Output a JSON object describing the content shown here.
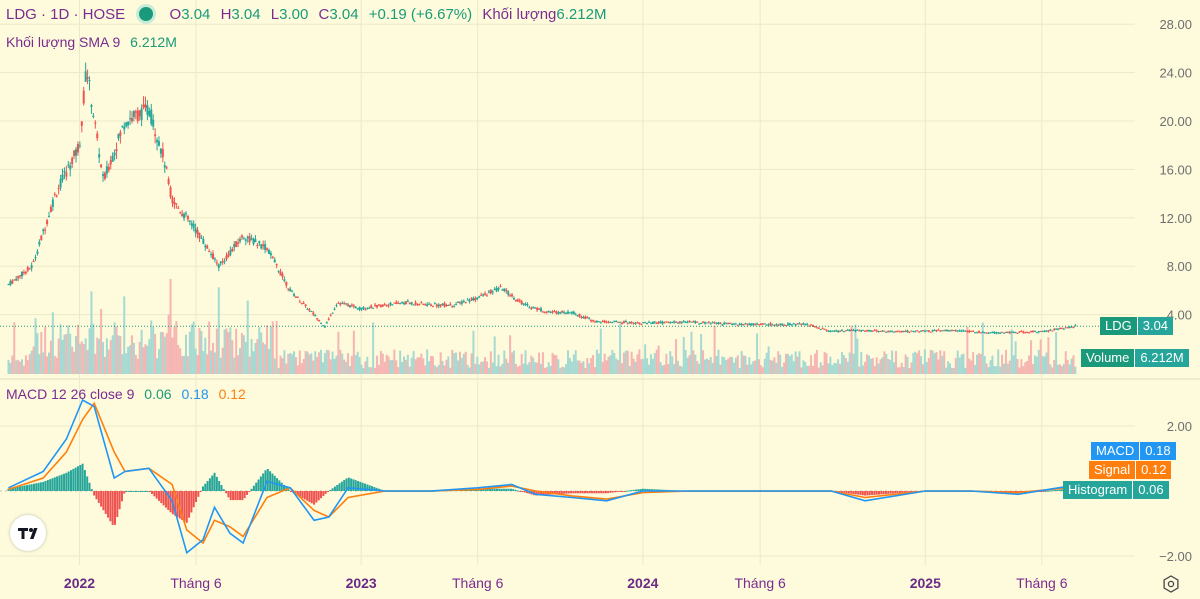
{
  "header": {
    "symbol": "LDG · 1D · HOSE",
    "o_label": "O",
    "o_value": "3.04",
    "h_label": "H",
    "h_value": "3.04",
    "l_label": "L",
    "l_value": "3.00",
    "c_label": "C",
    "c_value": "3.04",
    "change": "+0.19 (+6.67%)",
    "vol_label": "Khối lượng",
    "vol_value": "6.212M"
  },
  "volume_legend": {
    "label": "Khối lượng SMA 9",
    "value": "6.212M"
  },
  "macd_legend": {
    "label": "MACD 12 26 close 9",
    "hist": "0.06",
    "macd": "0.18",
    "signal": "0.12"
  },
  "badges": {
    "price": {
      "label": "LDG",
      "value": "3.04"
    },
    "volume": {
      "label": "Volume",
      "value": "6.212M"
    },
    "macd": {
      "label": "MACD",
      "value": "0.18"
    },
    "signal": {
      "label": "Signal",
      "value": "0.12"
    },
    "histogram": {
      "label": "Histogram",
      "value": "0.06"
    }
  },
  "colors": {
    "up": "#26a69a",
    "down": "#ef5350",
    "macd": "#2196f3",
    "signal": "#ff7f0e",
    "hist_up": "#26a69a",
    "hist_down": "#ef5350",
    "accent": "#7b2b8f"
  },
  "chart_data": [
    {
      "type": "candlestick",
      "symbol": "LDG",
      "interval": "1D",
      "exchange": "HOSE",
      "x_ticks": [
        "2022",
        "Tháng 6",
        "2023",
        "Tháng 6",
        "2024",
        "Tháng 6",
        "2025",
        "Tháng 6"
      ],
      "y_ticks": [
        "28.00",
        "24.00",
        "20.00",
        "16.00",
        "12.00",
        "8.00",
        "4.00"
      ],
      "ylim": [
        0,
        28
      ],
      "grid": true,
      "series": [
        {
          "name": "LDG",
          "x": [
            "2021-10-01",
            "2021-11-01",
            "2021-12-01",
            "2022-01-01",
            "2022-01-10",
            "2022-02-01",
            "2022-03-01",
            "2022-04-01",
            "2022-04-20",
            "2022-05-01",
            "2022-06-01",
            "2022-07-01",
            "2022-08-01",
            "2022-09-01",
            "2022-10-01",
            "2022-11-01",
            "2022-11-15",
            "2022-12-01",
            "2023-01-01",
            "2023-02-01",
            "2023-03-01",
            "2023-04-01",
            "2023-05-01",
            "2023-06-01",
            "2023-07-01",
            "2023-08-01",
            "2023-09-01",
            "2023-10-01",
            "2023-11-01",
            "2023-12-01",
            "2024-01-01",
            "2024-03-01",
            "2024-05-01",
            "2024-06-01",
            "2024-08-01",
            "2024-09-01",
            "2024-10-01",
            "2024-12-01",
            "2025-02-01",
            "2025-04-01",
            "2025-06-01",
            "2025-07-15"
          ],
          "close": [
            6.5,
            8.0,
            14.0,
            18.0,
            24.5,
            15.0,
            20.0,
            21.0,
            17.0,
            13.5,
            11.0,
            8.0,
            10.5,
            9.5,
            6.0,
            4.0,
            3.0,
            5.0,
            4.5,
            4.8,
            5.0,
            4.8,
            4.8,
            5.4,
            6.2,
            4.8,
            4.2,
            4.2,
            3.4,
            3.4,
            3.3,
            3.4,
            3.2,
            3.2,
            3.2,
            2.6,
            2.7,
            2.6,
            2.7,
            2.5,
            2.6,
            3.04
          ]
        },
        {
          "name": "Volume",
          "unit": "M",
          "last": 6.212
        }
      ]
    },
    {
      "type": "line",
      "indicator": "MACD 12 26 close 9",
      "y_ticks": [
        "2.00",
        "−2.00"
      ],
      "ylim": [
        -2.8,
        3.5
      ],
      "x": [
        "2021-10-01",
        "2021-11-15",
        "2021-12-15",
        "2022-01-05",
        "2022-01-20",
        "2022-02-15",
        "2022-03-01",
        "2022-04-01",
        "2022-05-01",
        "2022-05-20",
        "2022-06-10",
        "2022-06-25",
        "2022-07-15",
        "2022-08-01",
        "2022-09-01",
        "2022-10-01",
        "2022-11-01",
        "2022-11-20",
        "2022-12-15",
        "2023-02-01",
        "2023-04-01",
        "2023-06-01",
        "2023-07-15",
        "2023-08-15",
        "2023-10-01",
        "2023-11-15",
        "2024-01-01",
        "2024-03-01",
        "2024-06-01",
        "2024-09-01",
        "2024-10-15",
        "2025-01-01",
        "2025-03-01",
        "2025-05-01",
        "2025-07-15"
      ],
      "series": [
        {
          "name": "MACD",
          "values": [
            0.1,
            0.6,
            1.6,
            2.8,
            2.6,
            0.4,
            0.6,
            0.7,
            -0.3,
            -1.9,
            -1.5,
            -0.5,
            -1.3,
            -1.6,
            0.3,
            0.1,
            -0.9,
            -0.8,
            0.1,
            0.0,
            0.0,
            0.1,
            0.2,
            -0.1,
            -0.2,
            -0.3,
            0.0,
            0.0,
            0.0,
            0.0,
            -0.3,
            0.0,
            0.0,
            -0.1,
            0.18
          ]
        },
        {
          "name": "Signal",
          "values": [
            0.05,
            0.4,
            1.2,
            2.2,
            2.7,
            1.2,
            0.6,
            0.7,
            0.2,
            -1.2,
            -1.6,
            -0.9,
            -1.1,
            -1.4,
            -0.2,
            0.1,
            -0.6,
            -0.8,
            -0.2,
            0.0,
            0.0,
            0.05,
            0.15,
            0.0,
            -0.15,
            -0.25,
            -0.05,
            0.0,
            0.0,
            0.0,
            -0.2,
            0.0,
            0.0,
            -0.05,
            0.12
          ]
        }
      ],
      "histogram_last": 0.06,
      "grid": true
    }
  ]
}
